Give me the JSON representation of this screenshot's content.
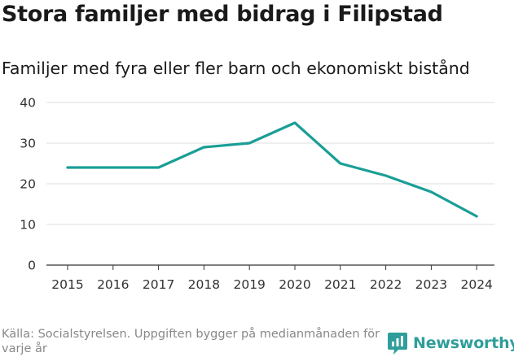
{
  "header": {
    "title": "Stora familjer med bidrag i Filipstad",
    "subtitle": "Familjer med fyra eller fler barn och ekonomiskt bistånd"
  },
  "footer": {
    "source": "Källa: Socialstyrelsen. Uppgiften bygger på medianmånaden för varje år",
    "brand": "Newsworthy",
    "brand_icon": "newsworthy-logo-icon"
  },
  "colors": {
    "line": "#1a9e96",
    "grid": "#dcdcdc",
    "axis": "#333333",
    "brand": "#2f9e9a"
  },
  "chart_data": {
    "type": "line",
    "title": "Stora familjer med bidrag i Filipstad",
    "subtitle": "Familjer med fyra eller fler barn och ekonomiskt bistånd",
    "xlabel": "",
    "ylabel": "",
    "x": [
      2015,
      2016,
      2017,
      2018,
      2019,
      2020,
      2021,
      2022,
      2023,
      2024
    ],
    "series": [
      {
        "name": "Familjer",
        "values": [
          24,
          24,
          24,
          29,
          30,
          35,
          25,
          22,
          18,
          12
        ]
      }
    ],
    "ylim": [
      0,
      40
    ],
    "yticks": [
      0,
      10,
      20,
      30,
      40
    ],
    "grid": true,
    "legend": "none"
  }
}
